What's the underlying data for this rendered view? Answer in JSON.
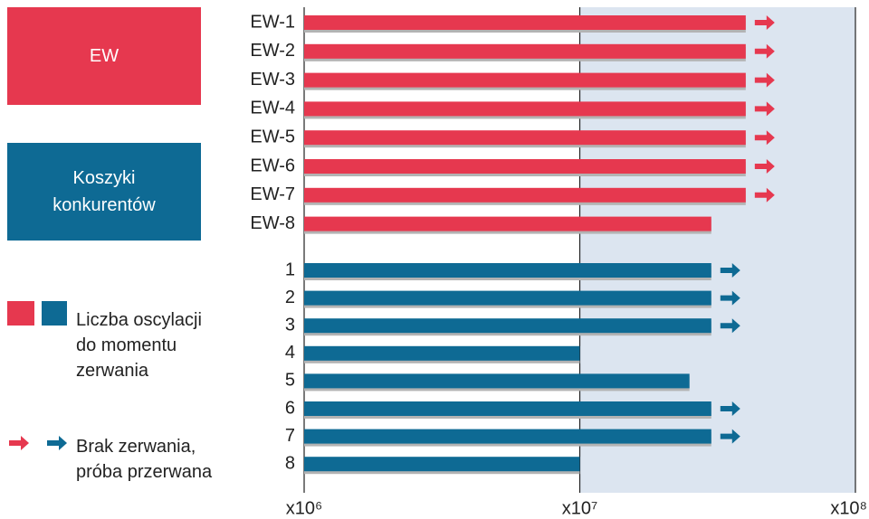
{
  "chart_data": {
    "type": "bar",
    "orientation": "horizontal",
    "xscale": "log",
    "xlim": [
      1000000,
      100000000
    ],
    "xticks": [
      {
        "value": 1000000,
        "label": "x10⁶"
      },
      {
        "value": 10000000,
        "label": "x10⁷"
      },
      {
        "value": 100000000,
        "label": "x10⁸"
      }
    ],
    "series": [
      {
        "name": "EW",
        "color": "#e6384f",
        "categories": [
          "EW-1",
          "EW-2",
          "EW-3",
          "EW-4",
          "EW-5",
          "EW-6",
          "EW-7",
          "EW-8"
        ],
        "values": [
          40000000,
          40000000,
          40000000,
          40000000,
          40000000,
          40000000,
          40000000,
          30000000
        ],
        "no_break": [
          true,
          true,
          true,
          true,
          true,
          true,
          true,
          false
        ]
      },
      {
        "name": "Koszyki konkurentów",
        "color": "#0e6a94",
        "categories": [
          "1",
          "2",
          "3",
          "4",
          "5",
          "6",
          "7",
          "8"
        ],
        "values": [
          30000000,
          30000000,
          30000000,
          10000000,
          25000000,
          30000000,
          30000000,
          10000000
        ],
        "no_break": [
          true,
          true,
          true,
          false,
          false,
          true,
          true,
          false
        ]
      }
    ],
    "legend": {
      "bar_label": "Liczba oscylacji do momentu zerwania",
      "arrow_label": "Brak zerwania, próba przerwana"
    }
  }
}
